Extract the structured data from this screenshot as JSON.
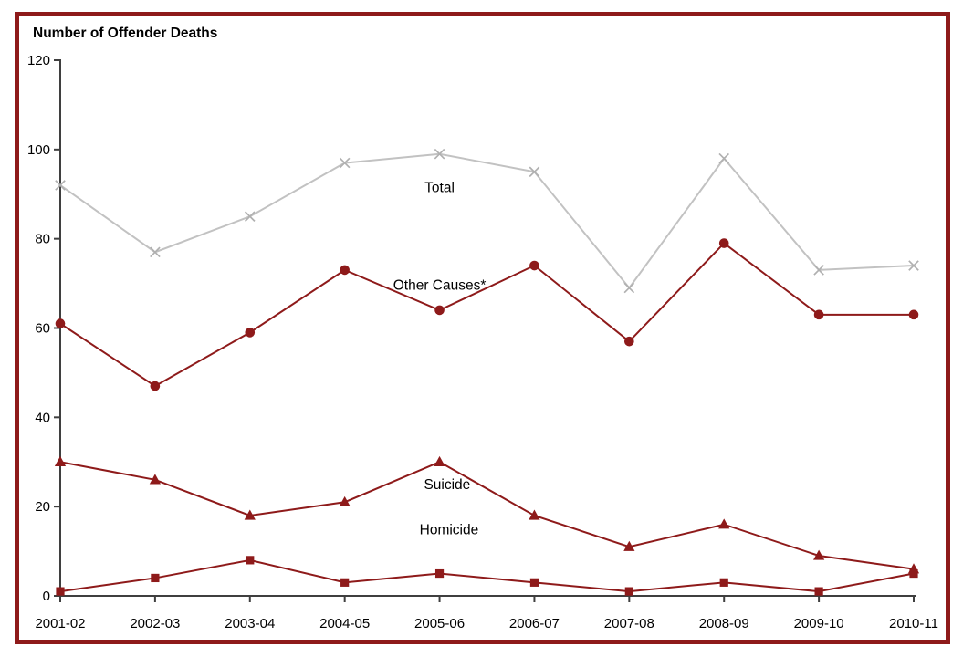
{
  "chart_data": {
    "type": "line",
    "title": "Number of Offender Deaths",
    "categories": [
      "2001-02",
      "2002-03",
      "2003-04",
      "2004-05",
      "2005-06",
      "2006-07",
      "2007-08",
      "2008-09",
      "2009-10",
      "2010-11"
    ],
    "series": [
      {
        "name": "Total",
        "marker": "x",
        "color": "#c2c2c2",
        "marker_color": "#b0b0b0",
        "values": [
          92,
          77,
          85,
          97,
          99,
          95,
          69,
          98,
          73,
          74
        ]
      },
      {
        "name": "Other Causes*",
        "marker": "circle",
        "color": "#8e1a1a",
        "marker_color": "#8e1a1a",
        "values": [
          61,
          47,
          59,
          73,
          64,
          74,
          57,
          79,
          63,
          63
        ]
      },
      {
        "name": "Suicide",
        "marker": "triangle",
        "color": "#8e1a1a",
        "marker_color": "#8e1a1a",
        "values": [
          30,
          26,
          18,
          21,
          30,
          18,
          11,
          16,
          9,
          6
        ]
      },
      {
        "name": "Homicide",
        "marker": "square",
        "color": "#8e1a1a",
        "marker_color": "#8e1a1a",
        "values": [
          1,
          4,
          8,
          3,
          5,
          3,
          1,
          3,
          1,
          5
        ]
      }
    ],
    "annotations": [
      {
        "text": "Total",
        "xi": 4.0,
        "v": 91.5
      },
      {
        "text": "Other Causes*",
        "xi": 4.0,
        "v": 69.6
      },
      {
        "text": "Suicide",
        "xi": 4.08,
        "v": 24.9
      },
      {
        "text": "Homicide",
        "xi": 4.1,
        "v": 14.8
      }
    ],
    "xlabel": "",
    "ylabel": "",
    "ylim": [
      0,
      120
    ],
    "yticks": [
      0,
      20,
      40,
      60,
      80,
      100,
      120
    ],
    "grid": false,
    "legend_position": "inline",
    "frame_color": "#8e1a1a",
    "axis_color": "#3f3f3f",
    "text_color": "#000000"
  }
}
